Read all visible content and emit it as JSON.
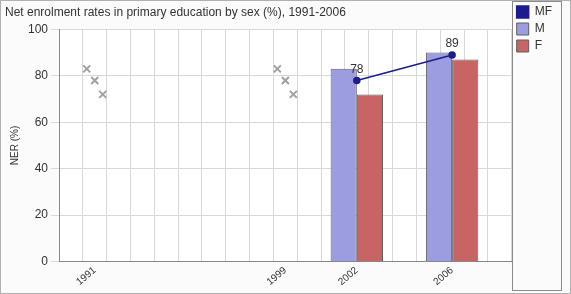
{
  "chart_data": {
    "type": "bar",
    "title": "Net enrolment rates in primary education by sex (%), 1991-2006",
    "y_label": "NER (%)",
    "categories": [
      null,
      "1991",
      null,
      null,
      null,
      null,
      null,
      null,
      null,
      "1999",
      null,
      null,
      "2002",
      null,
      null,
      null,
      "2006",
      null,
      null
    ],
    "series": [
      {
        "name": "M",
        "type": "bar",
        "color": "#9c9ce0",
        "values": [
          null,
          null,
          null,
          null,
          null,
          null,
          null,
          null,
          null,
          null,
          null,
          null,
          83,
          null,
          null,
          null,
          90,
          null,
          null
        ]
      },
      {
        "name": "F",
        "type": "bar",
        "color": "#c86464",
        "values": [
          null,
          null,
          null,
          null,
          null,
          null,
          null,
          null,
          null,
          null,
          null,
          null,
          72,
          null,
          null,
          null,
          87,
          null,
          null
        ]
      },
      {
        "name": "MF",
        "type": "line",
        "color": "#1c1c8c",
        "marker": "circle",
        "data_labels": true,
        "values": [
          null,
          null,
          null,
          null,
          null,
          null,
          null,
          null,
          null,
          null,
          null,
          null,
          78,
          null,
          null,
          null,
          89,
          null,
          null
        ]
      }
    ],
    "ylim": [
      0,
      100
    ],
    "yticks": [
      0,
      20,
      40,
      60,
      80,
      100
    ],
    "grid": true,
    "legend": "right"
  }
}
